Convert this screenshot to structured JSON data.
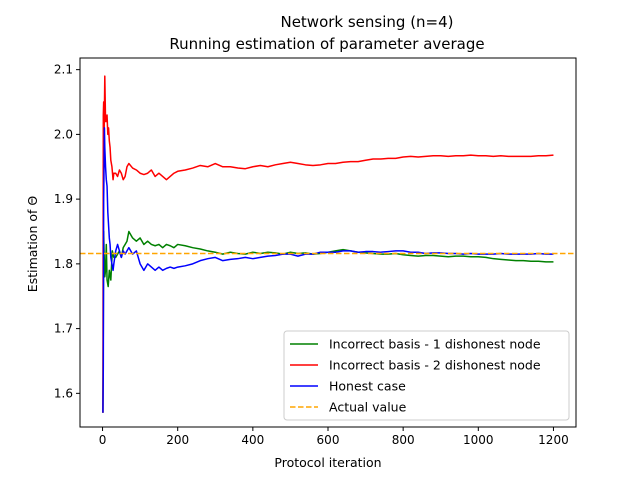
{
  "chart_data": {
    "type": "line",
    "title": "Network sensing (n=4)",
    "subtitle": "Running estimation of parameter average",
    "xlabel": "Protocol iteration",
    "ylabel": "Estimation of Θ",
    "xlim": [
      -60,
      1260
    ],
    "ylim": [
      1.548,
      2.118
    ],
    "x_ticks": [
      0,
      200,
      400,
      600,
      800,
      1000,
      1200
    ],
    "x_tick_labels": [
      "0",
      "200",
      "400",
      "600",
      "800",
      "1000",
      "1200"
    ],
    "y_ticks": [
      1.6,
      1.7,
      1.8,
      1.9,
      2.0,
      2.1
    ],
    "y_tick_labels": [
      "1.6",
      "1.7",
      "1.8",
      "1.9",
      "2.0",
      "2.1"
    ],
    "grid": false,
    "legend_position": "lower-right",
    "series": [
      {
        "name": "Incorrect basis - 1 dishonest node",
        "color": "#008000",
        "style": "solid",
        "x": [
          1,
          2,
          3,
          4,
          5,
          6,
          8,
          10,
          12,
          15,
          18,
          22,
          26,
          30,
          35,
          40,
          45,
          50,
          55,
          60,
          65,
          70,
          75,
          80,
          90,
          100,
          110,
          120,
          130,
          140,
          150,
          160,
          170,
          180,
          190,
          200,
          220,
          240,
          260,
          280,
          300,
          320,
          340,
          360,
          380,
          400,
          420,
          440,
          460,
          480,
          500,
          520,
          540,
          560,
          580,
          600,
          620,
          640,
          660,
          680,
          700,
          720,
          740,
          760,
          780,
          800,
          820,
          840,
          860,
          880,
          900,
          920,
          940,
          960,
          980,
          1000,
          1020,
          1040,
          1060,
          1080,
          1100,
          1120,
          1140,
          1160,
          1180,
          1200
        ],
        "values": [
          1.57,
          1.7,
          1.85,
          1.82,
          1.8,
          1.78,
          1.79,
          1.83,
          1.775,
          1.765,
          1.79,
          1.775,
          1.82,
          1.81,
          1.81,
          1.815,
          1.82,
          1.81,
          1.825,
          1.83,
          1.835,
          1.85,
          1.845,
          1.84,
          1.835,
          1.84,
          1.83,
          1.835,
          1.83,
          1.828,
          1.83,
          1.825,
          1.83,
          1.828,
          1.825,
          1.83,
          1.828,
          1.825,
          1.823,
          1.82,
          1.818,
          1.815,
          1.818,
          1.816,
          1.815,
          1.818,
          1.816,
          1.818,
          1.817,
          1.815,
          1.818,
          1.816,
          1.817,
          1.815,
          1.816,
          1.818,
          1.82,
          1.822,
          1.82,
          1.818,
          1.817,
          1.816,
          1.815,
          1.815,
          1.816,
          1.814,
          1.813,
          1.812,
          1.813,
          1.813,
          1.812,
          1.811,
          1.812,
          1.812,
          1.811,
          1.811,
          1.81,
          1.808,
          1.807,
          1.806,
          1.805,
          1.805,
          1.804,
          1.804,
          1.803,
          1.803
        ]
      },
      {
        "name": "Incorrect basis - 2 dishonest node",
        "color": "#ff0000",
        "style": "solid",
        "x": [
          1,
          2,
          3,
          4,
          5,
          6,
          8,
          10,
          12,
          14,
          16,
          18,
          20,
          22,
          25,
          28,
          30,
          35,
          40,
          45,
          50,
          55,
          60,
          65,
          70,
          80,
          90,
          100,
          110,
          120,
          130,
          140,
          150,
          160,
          170,
          180,
          190,
          200,
          220,
          240,
          260,
          280,
          300,
          320,
          340,
          360,
          380,
          400,
          420,
          440,
          460,
          480,
          500,
          520,
          540,
          560,
          580,
          600,
          620,
          640,
          660,
          680,
          700,
          720,
          740,
          760,
          780,
          800,
          820,
          840,
          860,
          880,
          900,
          920,
          940,
          960,
          980,
          1000,
          1020,
          1040,
          1060,
          1080,
          1100,
          1120,
          1140,
          1160,
          1180,
          1200
        ],
        "values": [
          1.57,
          2.03,
          2.05,
          1.99,
          2.04,
          2.09,
          2.02,
          2.02,
          2.03,
          2.0,
          2.01,
          1.99,
          1.98,
          1.96,
          1.95,
          1.93,
          1.94,
          1.94,
          1.935,
          1.945,
          1.94,
          1.93,
          1.935,
          1.95,
          1.955,
          1.948,
          1.945,
          1.94,
          1.938,
          1.94,
          1.945,
          1.935,
          1.94,
          1.935,
          1.93,
          1.935,
          1.94,
          1.943,
          1.945,
          1.948,
          1.952,
          1.95,
          1.955,
          1.95,
          1.95,
          1.948,
          1.947,
          1.95,
          1.952,
          1.95,
          1.953,
          1.955,
          1.957,
          1.955,
          1.953,
          1.952,
          1.953,
          1.955,
          1.955,
          1.957,
          1.958,
          1.958,
          1.96,
          1.962,
          1.962,
          1.963,
          1.963,
          1.965,
          1.966,
          1.965,
          1.966,
          1.967,
          1.967,
          1.966,
          1.967,
          1.967,
          1.968,
          1.967,
          1.967,
          1.966,
          1.967,
          1.966,
          1.966,
          1.966,
          1.966,
          1.967,
          1.967,
          1.968
        ]
      },
      {
        "name": "Honest case",
        "color": "#0000ff",
        "style": "solid",
        "x": [
          1,
          2,
          3,
          4,
          5,
          6,
          8,
          10,
          12,
          14,
          16,
          18,
          20,
          22,
          25,
          28,
          30,
          35,
          40,
          45,
          50,
          55,
          60,
          65,
          70,
          80,
          90,
          100,
          110,
          120,
          130,
          140,
          150,
          160,
          170,
          180,
          190,
          200,
          220,
          240,
          260,
          280,
          300,
          320,
          340,
          360,
          380,
          400,
          420,
          440,
          460,
          480,
          500,
          520,
          540,
          560,
          580,
          600,
          620,
          640,
          660,
          680,
          700,
          720,
          740,
          760,
          780,
          800,
          820,
          840,
          860,
          880,
          900,
          920,
          940,
          960,
          980,
          1000,
          1020,
          1040,
          1060,
          1080,
          1100,
          1120,
          1140,
          1160,
          1180,
          1200
        ],
        "values": [
          1.57,
          1.64,
          1.9,
          1.95,
          2.01,
          1.98,
          1.95,
          1.93,
          1.92,
          1.88,
          1.86,
          1.84,
          1.83,
          1.81,
          1.8,
          1.79,
          1.8,
          1.82,
          1.83,
          1.82,
          1.81,
          1.82,
          1.815,
          1.82,
          1.825,
          1.815,
          1.82,
          1.8,
          1.79,
          1.8,
          1.795,
          1.79,
          1.795,
          1.79,
          1.793,
          1.795,
          1.793,
          1.795,
          1.797,
          1.8,
          1.805,
          1.808,
          1.81,
          1.805,
          1.807,
          1.808,
          1.81,
          1.808,
          1.81,
          1.812,
          1.813,
          1.815,
          1.815,
          1.812,
          1.815,
          1.815,
          1.818,
          1.818,
          1.818,
          1.82,
          1.82,
          1.818,
          1.819,
          1.819,
          1.818,
          1.819,
          1.82,
          1.82,
          1.818,
          1.818,
          1.816,
          1.817,
          1.817,
          1.816,
          1.816,
          1.815,
          1.816,
          1.815,
          1.815,
          1.815,
          1.816,
          1.815,
          1.815,
          1.815,
          1.815,
          1.816,
          1.815,
          1.815
        ]
      },
      {
        "name": "Actual value",
        "color": "#ffa500",
        "style": "dashed",
        "x": [
          -60,
          1260
        ],
        "values": [
          1.816,
          1.816
        ]
      }
    ]
  }
}
